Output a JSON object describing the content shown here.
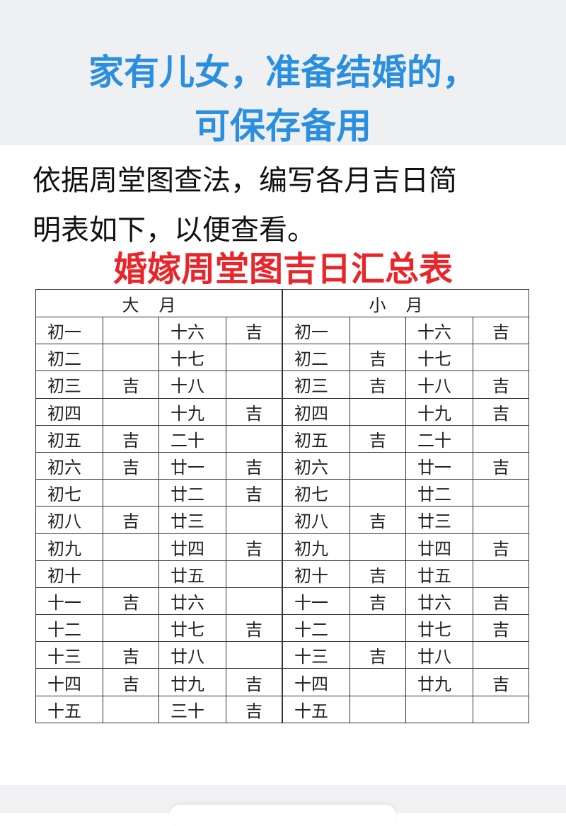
{
  "header": {
    "title_line1": "家有儿女，准备结婚的，",
    "title_line2": "可保存备用",
    "title_color": "#2b8fe0"
  },
  "intro": {
    "line1": "依据周堂图查法，编写各月吉日简",
    "line2": "明表如下，以便查看。"
  },
  "table_title": "婚嫁周堂图吉日汇总表",
  "table_title_color": "#e8262a",
  "table": {
    "big_month_label": "大月",
    "small_month_label": "小月",
    "rows": [
      [
        "初一",
        "",
        "十六",
        "吉",
        "初一",
        "",
        "十六",
        "吉"
      ],
      [
        "初二",
        "",
        "十七",
        "",
        "初二",
        "吉",
        "十七",
        ""
      ],
      [
        "初三",
        "吉",
        "十八",
        "",
        "初三",
        "吉",
        "十八",
        "吉"
      ],
      [
        "初四",
        "",
        "十九",
        "吉",
        "初四",
        "",
        "十九",
        "吉"
      ],
      [
        "初五",
        "吉",
        "二十",
        "",
        "初五",
        "吉",
        "二十",
        ""
      ],
      [
        "初六",
        "吉",
        "廿一",
        "吉",
        "初六",
        "",
        "廿一",
        "吉"
      ],
      [
        "初七",
        "",
        "廿二",
        "吉",
        "初七",
        "",
        "廿二",
        ""
      ],
      [
        "初八",
        "吉",
        "廿三",
        "",
        "初八",
        "吉",
        "廿三",
        ""
      ],
      [
        "初九",
        "",
        "廿四",
        "吉",
        "初九",
        "",
        "廿四",
        "吉"
      ],
      [
        "初十",
        "",
        "廿五",
        "",
        "初十",
        "吉",
        "廿五",
        ""
      ],
      [
        "十一",
        "吉",
        "廿六",
        "",
        "十一",
        "吉",
        "廿六",
        "吉"
      ],
      [
        "十二",
        "",
        "廿七",
        "吉",
        "十二",
        "",
        "廿七",
        "吉"
      ],
      [
        "十三",
        "吉",
        "廿八",
        "",
        "十三",
        "吉",
        "廿八",
        ""
      ],
      [
        "十四",
        "吉",
        "廿九",
        "吉",
        "十四",
        "",
        "廿九",
        "吉"
      ],
      [
        "十五",
        "",
        "三十",
        "吉",
        "十五",
        "",
        "",
        ""
      ]
    ]
  }
}
